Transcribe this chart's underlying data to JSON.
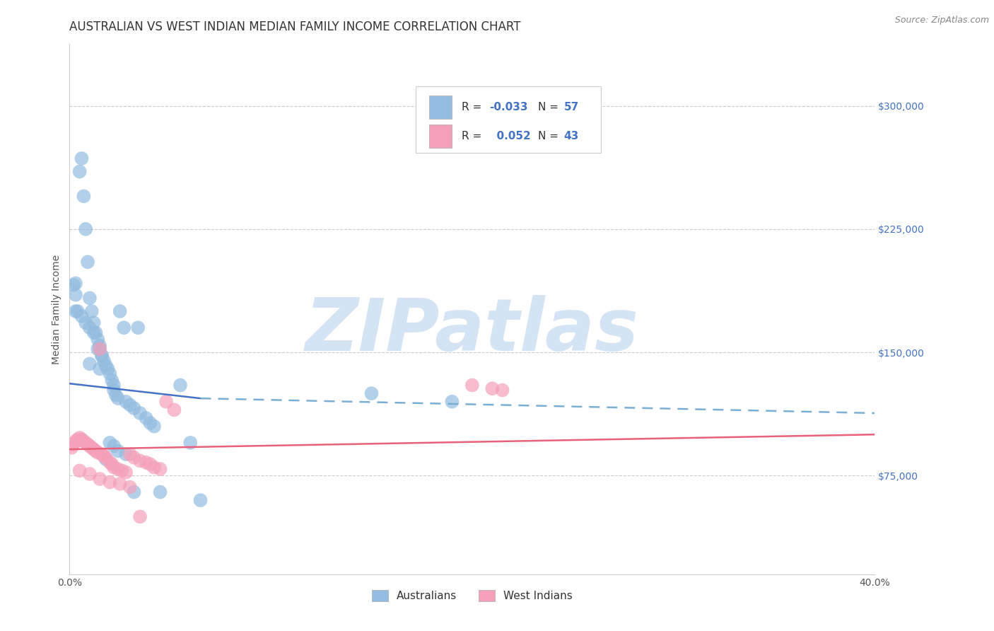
{
  "title": "AUSTRALIAN VS WEST INDIAN MEDIAN FAMILY INCOME CORRELATION CHART",
  "source": "Source: ZipAtlas.com",
  "ylabel": "Median Family Income",
  "xlim": [
    0.0,
    0.4
  ],
  "ylim": [
    15000,
    337500
  ],
  "yticks": [
    75000,
    150000,
    225000,
    300000
  ],
  "ytick_labels": [
    "$75,000",
    "$150,000",
    "$225,000",
    "$300,000"
  ],
  "xtick_positions": [
    0.0,
    0.05,
    0.1,
    0.15,
    0.2,
    0.25,
    0.3,
    0.35,
    0.4
  ],
  "background_color": "#ffffff",
  "grid_color": "#cccccc",
  "watermark": "ZIPatlas",
  "watermark_color": "#d4e4f5",
  "series": [
    {
      "name": "Australians",
      "color": "#92bce0",
      "R": -0.033,
      "N": 57,
      "x": [
        0.002,
        0.003,
        0.005,
        0.006,
        0.007,
        0.008,
        0.009,
        0.01,
        0.011,
        0.012,
        0.013,
        0.014,
        0.015,
        0.015,
        0.016,
        0.017,
        0.018,
        0.019,
        0.02,
        0.021,
        0.022,
        0.022,
        0.023,
        0.024,
        0.025,
        0.027,
        0.028,
        0.03,
        0.032,
        0.034,
        0.035,
        0.038,
        0.04,
        0.042,
        0.045,
        0.003,
        0.004,
        0.006,
        0.008,
        0.01,
        0.012,
        0.014,
        0.016,
        0.018,
        0.02,
        0.022,
        0.024,
        0.028,
        0.032,
        0.055,
        0.06,
        0.065,
        0.15,
        0.19,
        0.003,
        0.01,
        0.015
      ],
      "y": [
        191000,
        192000,
        260000,
        268000,
        245000,
        225000,
        205000,
        183000,
        175000,
        168000,
        162000,
        158000,
        154000,
        152000,
        148000,
        145000,
        142000,
        140000,
        137000,
        133000,
        130000,
        127000,
        124000,
        122000,
        175000,
        165000,
        120000,
        118000,
        116000,
        165000,
        113000,
        110000,
        107000,
        105000,
        65000,
        185000,
        175000,
        172000,
        168000,
        165000,
        162000,
        152000,
        148000,
        85000,
        95000,
        93000,
        90000,
        88000,
        65000,
        130000,
        95000,
        60000,
        125000,
        120000,
        175000,
        143000,
        140000
      ]
    },
    {
      "name": "West Indians",
      "color": "#f4a0b8",
      "R": 0.052,
      "N": 43,
      "x": [
        0.001,
        0.002,
        0.003,
        0.004,
        0.005,
        0.006,
        0.007,
        0.008,
        0.009,
        0.01,
        0.011,
        0.012,
        0.013,
        0.014,
        0.015,
        0.016,
        0.017,
        0.018,
        0.02,
        0.021,
        0.022,
        0.024,
        0.026,
        0.028,
        0.03,
        0.032,
        0.035,
        0.038,
        0.04,
        0.042,
        0.045,
        0.048,
        0.052,
        0.2,
        0.21,
        0.215,
        0.005,
        0.01,
        0.015,
        0.02,
        0.025,
        0.03,
        0.035
      ],
      "y": [
        92000,
        94000,
        96000,
        97000,
        98000,
        97000,
        96000,
        95000,
        94000,
        93000,
        92000,
        91000,
        90000,
        89000,
        152000,
        88000,
        87000,
        86000,
        83000,
        82000,
        80000,
        79000,
        78000,
        77000,
        88000,
        86000,
        84000,
        83000,
        82000,
        80000,
        79000,
        120000,
        115000,
        130000,
        128000,
        127000,
        78000,
        76000,
        73000,
        71000,
        70000,
        68000,
        50000
      ]
    }
  ],
  "trend_australians_solid": {
    "x": [
      0.0,
      0.065
    ],
    "y": [
      131000,
      122000
    ],
    "color": "#4472c4",
    "linewidth": 1.8,
    "linestyle": "-"
  },
  "trend_australians_dashed": {
    "x": [
      0.065,
      0.4
    ],
    "y": [
      122000,
      113000
    ],
    "color": "#7aafd4",
    "linewidth": 1.8,
    "linestyle": "--"
  },
  "trend_westindians": {
    "x": [
      0.0,
      0.4
    ],
    "y": [
      91000,
      100000
    ],
    "color": "#e8607a",
    "linewidth": 1.8,
    "linestyle": "-"
  },
  "legend_color": "#4472c4",
  "title_fontsize": 12,
  "axis_label_fontsize": 10,
  "tick_fontsize": 10
}
